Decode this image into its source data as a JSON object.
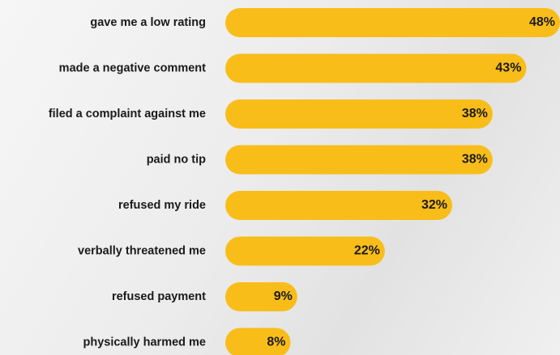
{
  "chart_data": {
    "type": "bar",
    "orientation": "horizontal",
    "categories": [
      "gave me a low rating",
      "made a negative comment",
      "filed a complaint against me",
      "paid no tip",
      "refused my ride",
      "verbally threatened me",
      "refused payment",
      "physically harmed me"
    ],
    "values": [
      48,
      43,
      38,
      38,
      32,
      22,
      9,
      8
    ],
    "value_labels": [
      "48%",
      "43%",
      "38%",
      "38%",
      "32%",
      "22%",
      "9%",
      "8%"
    ],
    "color": "#f9bd1a"
  }
}
